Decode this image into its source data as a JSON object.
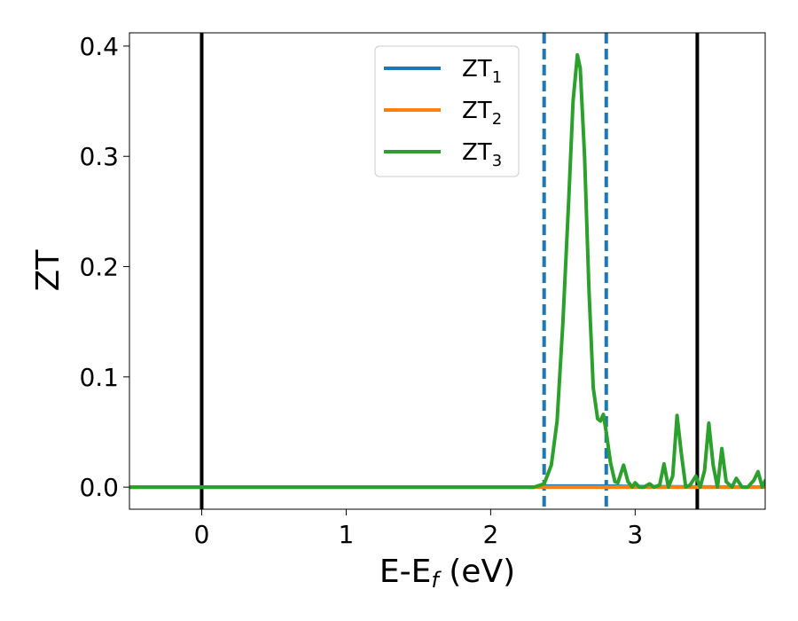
{
  "chart_data": {
    "type": "line",
    "xlabel_main": "E-E",
    "xlabel_sub": "f",
    "xlabel_unit": " (eV)",
    "ylabel": "ZT",
    "xlim": [
      -0.5,
      3.9
    ],
    "ylim": [
      -0.02,
      0.412
    ],
    "xticks": [
      0,
      1,
      2,
      3
    ],
    "yticks": [
      0.0,
      0.1,
      0.2,
      0.3,
      0.4
    ],
    "xtick_labels": [
      "0",
      "1",
      "2",
      "3"
    ],
    "ytick_labels": [
      "0.0",
      "0.1",
      "0.2",
      "0.3",
      "0.4"
    ],
    "grid": false,
    "legend_position": "top-center",
    "vertical_lines": [
      {
        "x": 0.0,
        "style": "solid",
        "color": "#000000"
      },
      {
        "x": 3.43,
        "style": "solid",
        "color": "#000000"
      },
      {
        "x": 2.37,
        "style": "dashed",
        "color": "#1f77b4"
      },
      {
        "x": 2.8,
        "style": "dashed",
        "color": "#1f77b4"
      }
    ],
    "series": [
      {
        "name": "ZT",
        "sub": "1",
        "color": "#1f77b4",
        "x": [
          -0.5,
          2.3,
          2.37,
          2.5,
          2.8,
          3.0,
          3.5,
          3.9
        ],
        "y": [
          0.0,
          0.0,
          0.001,
          0.001,
          0.001,
          0.0005,
          0.0002,
          0.0001
        ]
      },
      {
        "name": "ZT",
        "sub": "2",
        "color": "#ff7f0e",
        "x": [
          -0.5,
          3.9
        ],
        "y": [
          0.0,
          0.0
        ]
      },
      {
        "name": "ZT",
        "sub": "3",
        "color": "#2ca02c",
        "x": [
          -0.5,
          2.0,
          2.3,
          2.37,
          2.42,
          2.46,
          2.5,
          2.54,
          2.57,
          2.6,
          2.62,
          2.65,
          2.68,
          2.71,
          2.74,
          2.76,
          2.78,
          2.8,
          2.83,
          2.86,
          2.88,
          2.92,
          2.95,
          2.98,
          3.0,
          3.03,
          3.06,
          3.1,
          3.13,
          3.17,
          3.2,
          3.23,
          3.26,
          3.29,
          3.32,
          3.35,
          3.38,
          3.42,
          3.45,
          3.48,
          3.51,
          3.54,
          3.57,
          3.6,
          3.63,
          3.67,
          3.7,
          3.74,
          3.78,
          3.82,
          3.85,
          3.88,
          3.9
        ],
        "y": [
          0.0,
          0.0,
          0.0,
          0.003,
          0.02,
          0.06,
          0.15,
          0.26,
          0.35,
          0.392,
          0.38,
          0.3,
          0.18,
          0.09,
          0.062,
          0.06,
          0.066,
          0.05,
          0.022,
          0.005,
          0.004,
          0.02,
          0.005,
          0.0,
          0.004,
          0.0,
          0.0,
          0.003,
          0.0,
          0.002,
          0.021,
          0.0,
          0.01,
          0.065,
          0.03,
          0.0,
          0.002,
          0.01,
          0.0,
          0.015,
          0.058,
          0.02,
          0.0,
          0.035,
          0.005,
          0.0,
          0.008,
          0.0,
          0.0,
          0.006,
          0.014,
          0.0,
          0.006
        ]
      }
    ]
  }
}
